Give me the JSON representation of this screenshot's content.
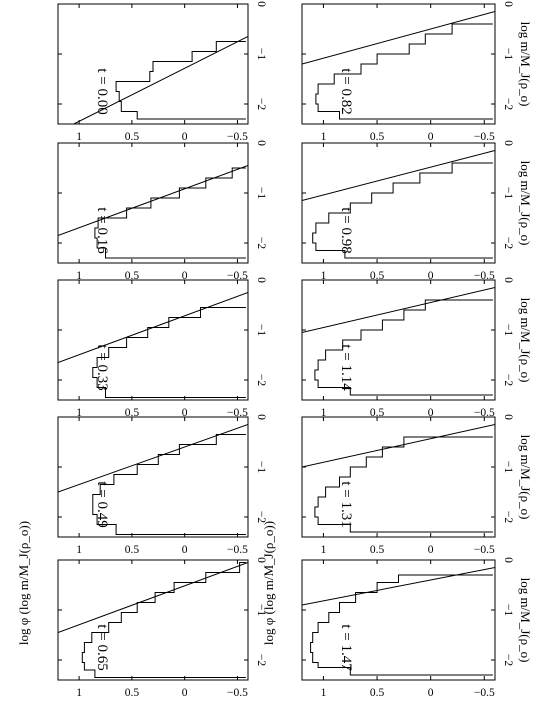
{
  "figure": {
    "ylabel": "log φ (log m/M_J(ρ_o))",
    "xlabel": "log m/M_J(ρ_o)"
  },
  "chart_data": [
    {
      "type": "line",
      "time_label": "t = 0.00",
      "xlim": [
        -2.4,
        0
      ],
      "ylim": [
        -0.6,
        1.2
      ],
      "xticks": [
        "−2",
        "−1",
        "0"
      ],
      "yticks": [
        "−0.5",
        "0",
        "0.5",
        "1"
      ],
      "histogram": {
        "edges": [
          -2.3,
          -2.15,
          -1.95,
          -1.75,
          -1.55,
          -1.35,
          -1.15,
          -0.95,
          -0.75
        ],
        "values": [
          0.45,
          0.6,
          0.62,
          0.65,
          0.33,
          0.3,
          -0.07,
          -0.3
        ]
      },
      "fit_line": {
        "x": [
          -2.4,
          -0.65
        ],
        "y": [
          1.05,
          -0.6
        ]
      }
    },
    {
      "type": "line",
      "time_label": "t = 0.16",
      "xlim": [
        -2.4,
        0
      ],
      "ylim": [
        -0.6,
        1.2
      ],
      "xticks": [
        "−2",
        "−1",
        "0"
      ],
      "yticks": [
        "−0.5",
        "0",
        "0.5",
        "1"
      ],
      "histogram": {
        "edges": [
          -2.3,
          -2.1,
          -1.9,
          -1.7,
          -1.5,
          -1.3,
          -1.1,
          -0.9,
          -0.7,
          -0.5
        ],
        "values": [
          0.75,
          0.83,
          0.85,
          0.82,
          0.55,
          0.32,
          0.05,
          -0.2,
          -0.45
        ]
      },
      "fit_line": {
        "x": [
          -1.85,
          -0.45
        ],
        "y": [
          1.2,
          -0.6
        ]
      }
    },
    {
      "type": "line",
      "time_label": "t = 0.33",
      "xlim": [
        -2.4,
        0
      ],
      "ylim": [
        -0.6,
        1.2
      ],
      "xticks": [
        "−2",
        "−1",
        "0"
      ],
      "yticks": [
        "−0.5",
        "0",
        "0.5",
        "1"
      ],
      "histogram": {
        "edges": [
          -2.35,
          -2.15,
          -1.95,
          -1.75,
          -1.55,
          -1.35,
          -1.15,
          -0.95,
          -0.75,
          -0.55
        ],
        "values": [
          0.75,
          0.83,
          0.87,
          0.83,
          0.72,
          0.55,
          0.35,
          0.15,
          -0.15
        ]
      },
      "fit_line": {
        "x": [
          -1.65,
          -0.25
        ],
        "y": [
          1.2,
          -0.6
        ]
      }
    },
    {
      "type": "line",
      "time_label": "t = 0.49",
      "xlim": [
        -2.4,
        0
      ],
      "ylim": [
        -0.6,
        1.2
      ],
      "xticks": [
        "−2",
        "−1",
        "0"
      ],
      "yticks": [
        "−0.5",
        "0",
        "0.5",
        "1"
      ],
      "histogram": {
        "edges": [
          -2.35,
          -2.15,
          -1.95,
          -1.75,
          -1.55,
          -1.35,
          -1.15,
          -0.95,
          -0.75,
          -0.55,
          -0.35
        ],
        "values": [
          0.65,
          0.83,
          0.87,
          0.87,
          0.8,
          0.67,
          0.45,
          0.25,
          0.05,
          -0.3
        ]
      },
      "fit_line": {
        "x": [
          -1.5,
          -0.15
        ],
        "y": [
          1.2,
          -0.6
        ]
      }
    },
    {
      "type": "line",
      "time_label": "t = 0.65",
      "xlim": [
        -2.4,
        0
      ],
      "ylim": [
        -0.6,
        1.2
      ],
      "xticks": [
        "−2",
        "−1",
        "0"
      ],
      "yticks": [
        "−0.5",
        "0",
        "0.5",
        "1"
      ],
      "histogram": {
        "edges": [
          -2.35,
          -2.2,
          -2.05,
          -1.85,
          -1.65,
          -1.45,
          -1.25,
          -1.05,
          -0.85,
          -0.65,
          -0.45,
          -0.25,
          -0.05
        ],
        "values": [
          0.85,
          0.95,
          0.97,
          0.95,
          0.88,
          0.72,
          0.6,
          0.45,
          0.28,
          0.1,
          -0.2,
          -0.52
        ]
      },
      "fit_line": {
        "x": [
          -1.45,
          -0.05
        ],
        "y": [
          1.2,
          -0.6
        ]
      }
    },
    {
      "type": "line",
      "time_label": "t = 0.82",
      "xlim": [
        -2.4,
        0
      ],
      "ylim": [
        -0.6,
        1.2
      ],
      "xticks": [
        "−2",
        "−1",
        "0"
      ],
      "yticks": [
        "−0.5",
        "0",
        "0.5",
        "1"
      ],
      "histogram": {
        "edges": [
          -2.3,
          -2.15,
          -2.0,
          -1.8,
          -1.6,
          -1.4,
          -1.2,
          -1.0,
          -0.8,
          -0.6,
          -0.4
        ],
        "values": [
          0.85,
          1.05,
          1.07,
          1.05,
          0.9,
          0.65,
          0.5,
          0.2,
          0.05,
          -0.2
        ]
      },
      "fit_line": {
        "x": [
          -1.2,
          -0.15
        ],
        "y": [
          1.2,
          -0.6
        ]
      }
    },
    {
      "type": "line",
      "time_label": "t = 0.98",
      "xlim": [
        -2.4,
        0
      ],
      "ylim": [
        -0.6,
        1.2
      ],
      "xticks": [
        "−2",
        "−1",
        "0"
      ],
      "yticks": [
        "−0.5",
        "0",
        "0.5",
        "1"
      ],
      "histogram": {
        "edges": [
          -2.3,
          -2.15,
          -2.0,
          -1.8,
          -1.6,
          -1.4,
          -1.2,
          -1.0,
          -0.8,
          -0.6,
          -0.4
        ],
        "values": [
          0.8,
          1.07,
          1.1,
          1.07,
          0.95,
          0.75,
          0.55,
          0.35,
          0.1,
          -0.2
        ]
      },
      "fit_line": {
        "x": [
          -1.15,
          -0.15
        ],
        "y": [
          1.2,
          -0.6
        ]
      }
    },
    {
      "type": "line",
      "time_label": "t = 1.14",
      "xlim": [
        -2.4,
        0
      ],
      "ylim": [
        -0.6,
        1.2
      ],
      "xticks": [
        "−2",
        "−1",
        "0"
      ],
      "yticks": [
        "−0.5",
        "0",
        "0.5",
        "1"
      ],
      "histogram": {
        "edges": [
          -2.3,
          -2.15,
          -2.0,
          -1.8,
          -1.6,
          -1.4,
          -1.2,
          -1.0,
          -0.8,
          -0.6,
          -0.4
        ],
        "values": [
          0.75,
          1.05,
          1.08,
          1.05,
          0.98,
          0.82,
          0.65,
          0.45,
          0.25,
          0.05
        ]
      },
      "fit_line": {
        "x": [
          -1.05,
          -0.15
        ],
        "y": [
          1.2,
          -0.6
        ]
      }
    },
    {
      "type": "line",
      "time_label": "t = 1.31",
      "xlim": [
        -2.4,
        0
      ],
      "ylim": [
        -0.6,
        1.2
      ],
      "xticks": [
        "−2",
        "−1",
        "0"
      ],
      "yticks": [
        "−0.5",
        "0",
        "0.5",
        "1"
      ],
      "histogram": {
        "edges": [
          -2.3,
          -2.15,
          -2.0,
          -1.8,
          -1.6,
          -1.4,
          -1.2,
          -1.0,
          -0.8,
          -0.6,
          -0.4
        ],
        "values": [
          0.75,
          1.05,
          1.08,
          1.05,
          0.98,
          0.85,
          0.75,
          0.6,
          0.45,
          0.25
        ]
      },
      "fit_line": {
        "x": [
          -1.0,
          -0.15
        ],
        "y": [
          1.2,
          -0.6
        ]
      }
    },
    {
      "type": "line",
      "time_label": "t = 1.47",
      "xlim": [
        -2.4,
        0
      ],
      "ylim": [
        -0.6,
        1.2
      ],
      "xticks": [
        "−2",
        "−1",
        "0"
      ],
      "yticks": [
        "−0.5",
        "0",
        "0.5",
        "1"
      ],
      "histogram": {
        "edges": [
          -2.3,
          -2.15,
          -2.05,
          -1.85,
          -1.65,
          -1.45,
          -1.25,
          -1.05,
          -0.85,
          -0.65,
          -0.45,
          -0.3
        ],
        "values": [
          0.75,
          1.05,
          1.1,
          1.12,
          1.1,
          1.05,
          0.95,
          0.85,
          0.7,
          0.5,
          0.3
        ]
      },
      "fit_line": {
        "x": [
          -0.9,
          -0.15
        ],
        "y": [
          1.2,
          -0.6
        ]
      }
    }
  ]
}
